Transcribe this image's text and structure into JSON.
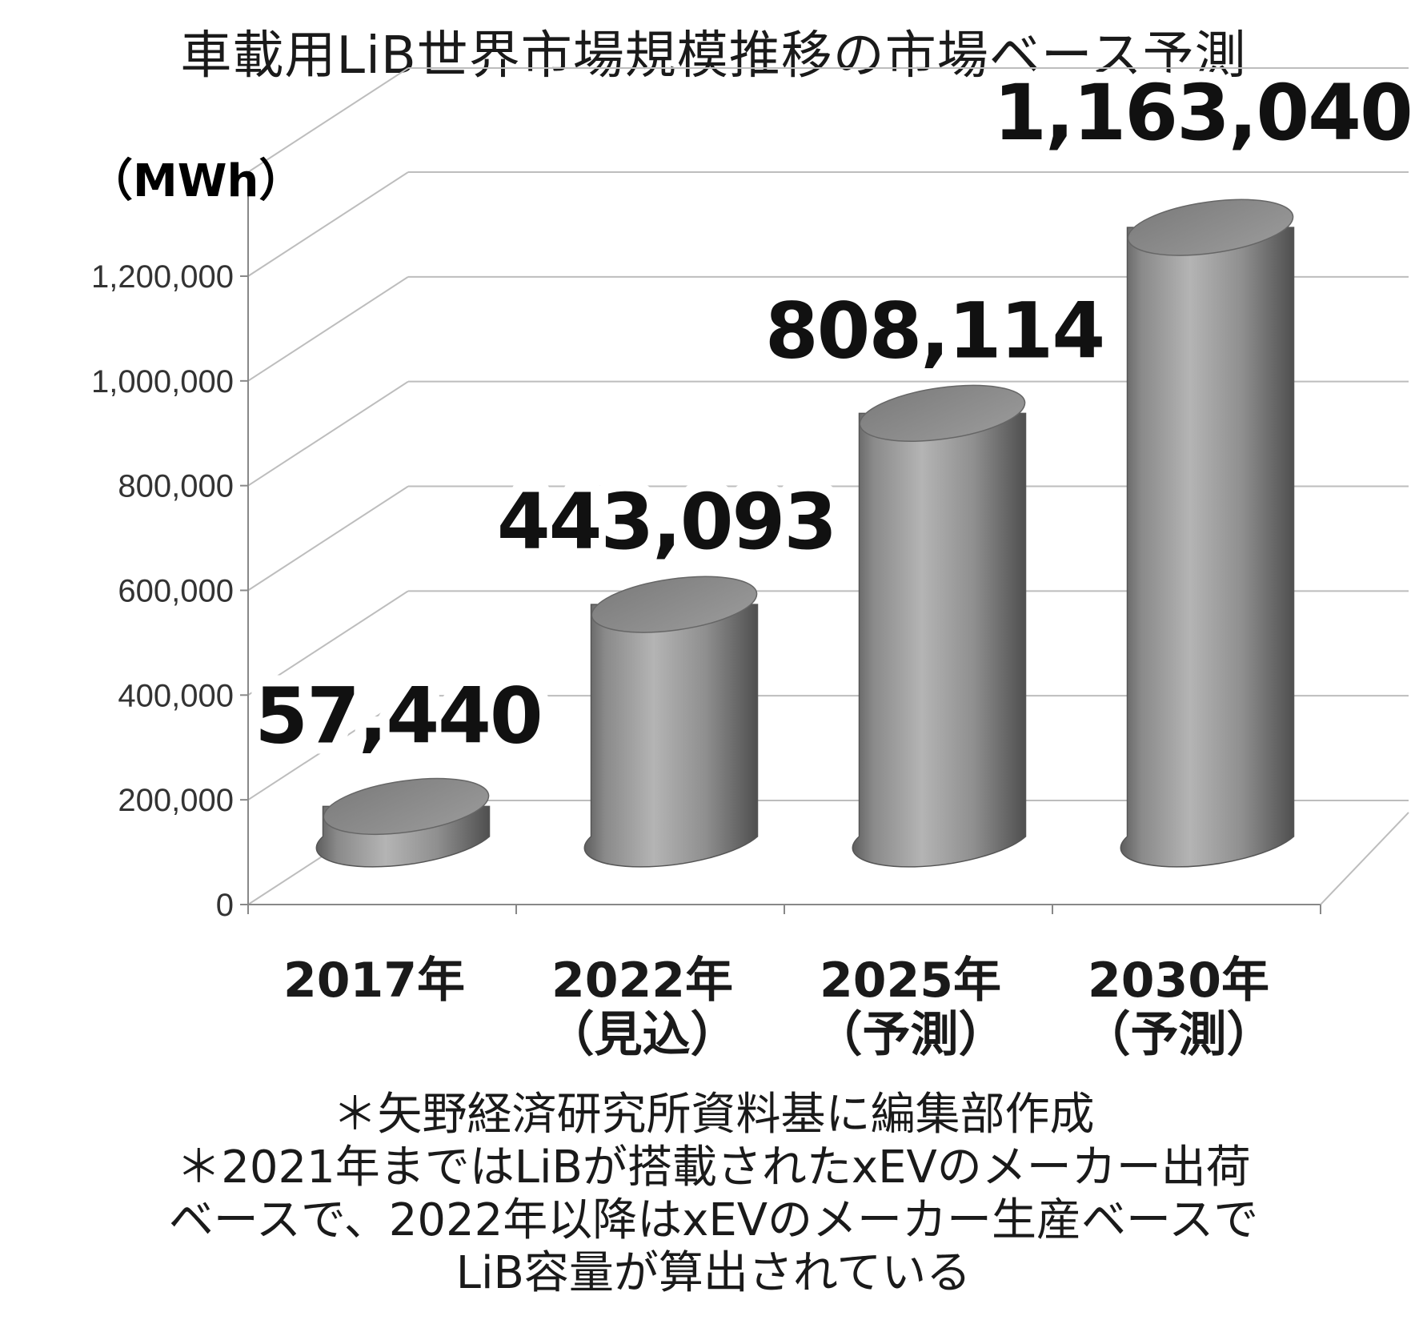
{
  "chart_data": {
    "type": "bar",
    "title": "車載用LiB世界市場規模推移の市場ベース予測",
    "ylabel": "（MWh）",
    "ylim": [
      0,
      1200000
    ],
    "yticks": [
      "0",
      "200,000",
      "400,000",
      "600,000",
      "800,000",
      "1,000,000",
      "1,200,000"
    ],
    "categories": [
      [
        "2017年"
      ],
      [
        "2022年",
        "（見込）"
      ],
      [
        "2025年",
        "（予測）"
      ],
      [
        "2030年",
        "（予測）"
      ]
    ],
    "values": [
      57440,
      443093,
      808114,
      1163040
    ],
    "value_labels": [
      "57,440",
      "443,093",
      "808,114",
      "1,163,040"
    ],
    "grid": true,
    "style": "3d-cylinder",
    "bar_color": "#8f8f8f"
  },
  "notes": [
    "＊矢野経済研究所資料基に編集部作成",
    "＊2021年まではLiBが搭載されたxEVのメーカー出荷",
    "ベースで、2022年以降はxEVのメーカー生産ベースで",
    "LiB容量が算出されている"
  ]
}
